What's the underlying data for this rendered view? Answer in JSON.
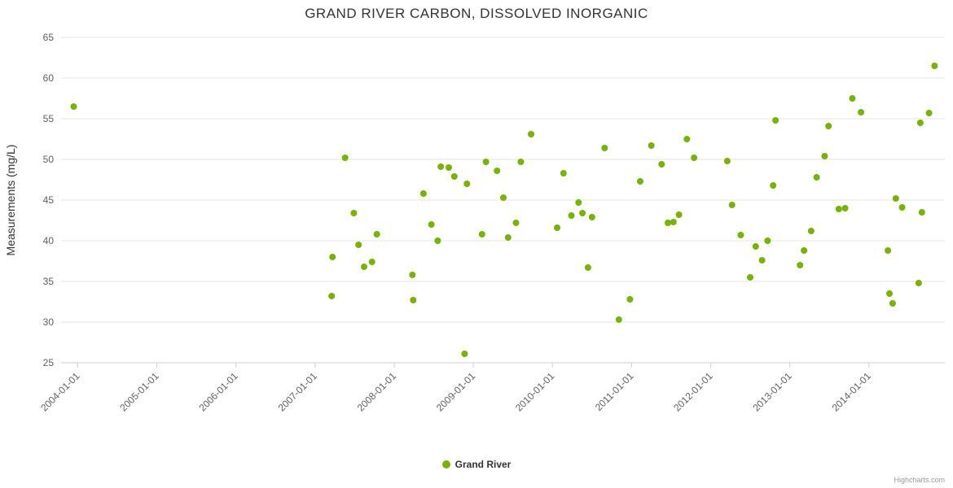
{
  "credits": "Highcharts.com",
  "chart_data": {
    "type": "scatter",
    "title": "GRAND RIVER CARBON, DISSOLVED INORGANIC",
    "xlabel": "",
    "ylabel": "Measurements (mg/L)",
    "ylim": [
      25,
      65
    ],
    "y_ticks": [
      25,
      30,
      35,
      40,
      45,
      50,
      55,
      60,
      65
    ],
    "xlim": [
      2003.79,
      2014.96
    ],
    "x_tick_years": [
      2004,
      2005,
      2006,
      2007,
      2008,
      2009,
      2010,
      2011,
      2012,
      2013,
      2014
    ],
    "x_tick_labels": [
      "2004-01-01",
      "2005-01-01",
      "2006-01-01",
      "2007-01-01",
      "2008-01-01",
      "2009-01-01",
      "2010-01-01",
      "2011-01-01",
      "2012-01-01",
      "2013-01-01",
      "2014-01-01"
    ],
    "grid": true,
    "legend_position": "bottom",
    "series": [
      {
        "name": "Grand River",
        "color": "#77b300",
        "points": [
          {
            "x": 2003.95,
            "y": 56.5
          },
          {
            "x": 2007.21,
            "y": 33.2
          },
          {
            "x": 2007.22,
            "y": 38.0
          },
          {
            "x": 2007.38,
            "y": 50.2
          },
          {
            "x": 2007.49,
            "y": 43.4
          },
          {
            "x": 2007.55,
            "y": 39.5
          },
          {
            "x": 2007.62,
            "y": 36.8
          },
          {
            "x": 2007.72,
            "y": 37.4
          },
          {
            "x": 2007.78,
            "y": 40.8
          },
          {
            "x": 2008.23,
            "y": 35.8
          },
          {
            "x": 2008.24,
            "y": 32.7
          },
          {
            "x": 2008.37,
            "y": 45.8
          },
          {
            "x": 2008.47,
            "y": 42.0
          },
          {
            "x": 2008.55,
            "y": 40.0
          },
          {
            "x": 2008.59,
            "y": 49.1
          },
          {
            "x": 2008.69,
            "y": 49.0
          },
          {
            "x": 2008.76,
            "y": 47.9
          },
          {
            "x": 2008.89,
            "y": 26.1
          },
          {
            "x": 2008.92,
            "y": 47.0
          },
          {
            "x": 2009.11,
            "y": 40.8
          },
          {
            "x": 2009.16,
            "y": 49.7
          },
          {
            "x": 2009.3,
            "y": 48.6
          },
          {
            "x": 2009.38,
            "y": 45.3
          },
          {
            "x": 2009.44,
            "y": 40.4
          },
          {
            "x": 2009.54,
            "y": 42.2
          },
          {
            "x": 2009.6,
            "y": 49.7
          },
          {
            "x": 2009.73,
            "y": 53.1
          },
          {
            "x": 2010.06,
            "y": 41.6
          },
          {
            "x": 2010.14,
            "y": 48.3
          },
          {
            "x": 2010.24,
            "y": 43.1
          },
          {
            "x": 2010.33,
            "y": 44.7
          },
          {
            "x": 2010.38,
            "y": 43.4
          },
          {
            "x": 2010.45,
            "y": 36.7
          },
          {
            "x": 2010.5,
            "y": 42.9
          },
          {
            "x": 2010.66,
            "y": 51.4
          },
          {
            "x": 2010.84,
            "y": 30.3
          },
          {
            "x": 2010.98,
            "y": 32.8
          },
          {
            "x": 2011.11,
            "y": 47.3
          },
          {
            "x": 2011.25,
            "y": 51.7
          },
          {
            "x": 2011.38,
            "y": 49.4
          },
          {
            "x": 2011.46,
            "y": 42.2
          },
          {
            "x": 2011.53,
            "y": 42.3
          },
          {
            "x": 2011.6,
            "y": 43.2
          },
          {
            "x": 2011.7,
            "y": 52.5
          },
          {
            "x": 2011.79,
            "y": 50.2
          },
          {
            "x": 2012.21,
            "y": 49.8
          },
          {
            "x": 2012.27,
            "y": 44.4
          },
          {
            "x": 2012.38,
            "y": 40.7
          },
          {
            "x": 2012.5,
            "y": 35.5
          },
          {
            "x": 2012.57,
            "y": 39.3
          },
          {
            "x": 2012.65,
            "y": 37.6
          },
          {
            "x": 2012.72,
            "y": 40.0
          },
          {
            "x": 2012.79,
            "y": 46.8
          },
          {
            "x": 2012.82,
            "y": 54.8
          },
          {
            "x": 2013.13,
            "y": 37.0
          },
          {
            "x": 2013.18,
            "y": 38.8
          },
          {
            "x": 2013.27,
            "y": 41.2
          },
          {
            "x": 2013.34,
            "y": 47.8
          },
          {
            "x": 2013.44,
            "y": 50.4
          },
          {
            "x": 2013.49,
            "y": 54.1
          },
          {
            "x": 2013.62,
            "y": 43.9
          },
          {
            "x": 2013.7,
            "y": 44.0
          },
          {
            "x": 2013.79,
            "y": 57.5
          },
          {
            "x": 2013.9,
            "y": 55.8
          },
          {
            "x": 2014.24,
            "y": 38.8
          },
          {
            "x": 2014.26,
            "y": 33.5
          },
          {
            "x": 2014.3,
            "y": 32.3
          },
          {
            "x": 2014.34,
            "y": 45.2
          },
          {
            "x": 2014.42,
            "y": 44.1
          },
          {
            "x": 2014.63,
            "y": 34.8
          },
          {
            "x": 2014.65,
            "y": 54.5
          },
          {
            "x": 2014.67,
            "y": 43.5
          },
          {
            "x": 2014.76,
            "y": 55.7
          },
          {
            "x": 2014.83,
            "y": 61.5
          }
        ]
      }
    ]
  }
}
